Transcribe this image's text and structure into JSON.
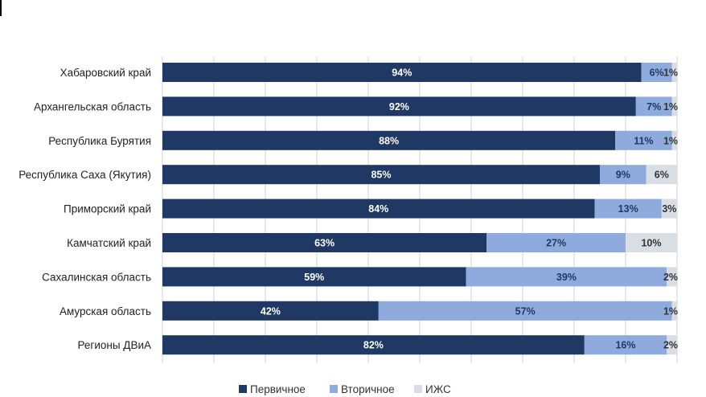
{
  "colors": {
    "primary": "#1F3864",
    "secondary": "#8FAADC",
    "izhs": "#D9DDE4",
    "grid": "#D0D0D0"
  },
  "legend": [
    "Первичное",
    "Вторичное",
    "ИЖС"
  ],
  "chart_data": {
    "type": "bar",
    "orientation": "horizontal",
    "stacked": true,
    "categories": [
      "Хабаровский край",
      "Архангельская область",
      "Республика Бурятия",
      "Республика Саха (Якутия)",
      "Приморский край",
      "Камчатский край",
      "Сахалинская область",
      "Амурская область",
      "Регионы ДВиА"
    ],
    "series": [
      {
        "name": "Первичное",
        "values": [
          94,
          92,
          88,
          85,
          84,
          63,
          59,
          42,
          82
        ],
        "labels": [
          "94%",
          "92%",
          "88%",
          "85%",
          "84%",
          "63%",
          "59%",
          "42%",
          "82%"
        ]
      },
      {
        "name": "Вторичное",
        "values": [
          6,
          7,
          11,
          9,
          13,
          27,
          39,
          57,
          16
        ],
        "labels": [
          "6%",
          "7%",
          "11%",
          "9%",
          "13%",
          "27%",
          "39%",
          "57%",
          "16%"
        ]
      },
      {
        "name": "ИЖС",
        "values": [
          1,
          1,
          1,
          6,
          3,
          10,
          2,
          1,
          2
        ],
        "labels": [
          "1%",
          "1%",
          "1%",
          "6%",
          "3%",
          "10%",
          "2%",
          "1%",
          "2%"
        ]
      }
    ],
    "xlim": [
      0,
      100
    ],
    "legend_position": "bottom",
    "grid": true
  }
}
